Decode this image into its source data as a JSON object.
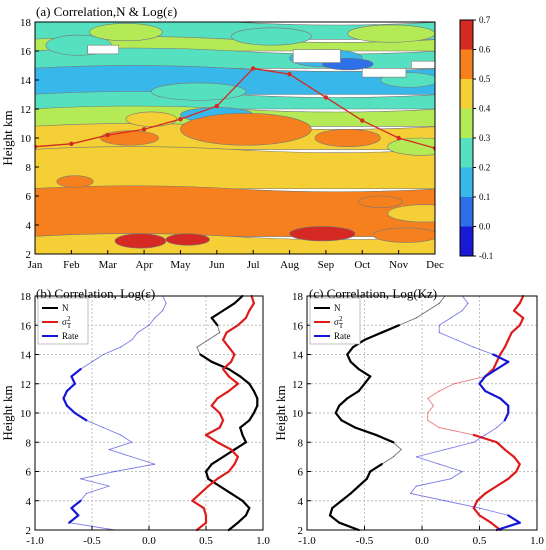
{
  "chart_data": [
    {
      "id": "a",
      "type": "heatmap",
      "title": "(a)  Correlation,N & Log(ε)",
      "ylabel": "Height km",
      "x_categories": [
        "Jan",
        "Feb",
        "Mar",
        "Apr",
        "May",
        "Jun",
        "Jul",
        "Aug",
        "Sep",
        "Oct",
        "Nov",
        "Dec"
      ],
      "ylim": [
        2,
        18
      ],
      "yticks": [
        2,
        4,
        6,
        8,
        10,
        12,
        14,
        16,
        18
      ],
      "colorbar": {
        "levels": [
          -0.1,
          0.0,
          0.1,
          0.2,
          0.3,
          0.4,
          0.5,
          0.6,
          0.7
        ],
        "tick_labels": [
          "-0.1",
          "0.0",
          "0.1",
          "0.2",
          "0.3",
          "0.4",
          "0.5",
          "0.6",
          "0.7"
        ],
        "colors": [
          "#1a1ad6",
          "#2f6fe8",
          "#38b8ea",
          "#55e0c0",
          "#b4ea55",
          "#f4cf35",
          "#f7801e",
          "#d42a23"
        ]
      },
      "bands": [
        {
          "level": 3,
          "yLow": 16.8,
          "yHigh": 18.0
        },
        {
          "level": 4,
          "yLow": 16.0,
          "yHigh": 16.8
        },
        {
          "level": 3,
          "yLow": 14.8,
          "yHigh": 16.0
        },
        {
          "level": 2,
          "yLow": 13.0,
          "yHigh": 14.8
        },
        {
          "level": 3,
          "yLow": 12.0,
          "yHigh": 13.0
        },
        {
          "level": 4,
          "yLow": 10.8,
          "yHigh": 12.0
        },
        {
          "level": 5,
          "yLow": 9.2,
          "yHigh": 10.8
        },
        {
          "level": 5,
          "yLow": 6.5,
          "yHigh": 9.2
        },
        {
          "level": 6,
          "yLow": 3.2,
          "yHigh": 6.5
        },
        {
          "level": 5,
          "yLow": 2.0,
          "yHigh": 3.2
        }
      ],
      "blobs": [
        {
          "level": 3,
          "x": 1.2,
          "y": 16.4,
          "rx": 0.9,
          "ry": 0.7
        },
        {
          "level": 4,
          "x": 2.5,
          "y": 17.3,
          "rx": 1.0,
          "ry": 0.6
        },
        {
          "level": 3,
          "x": 6.5,
          "y": 17.0,
          "rx": 1.1,
          "ry": 0.6
        },
        {
          "level": 4,
          "x": 9.8,
          "y": 17.2,
          "rx": 1.2,
          "ry": 0.6
        },
        {
          "level": 2,
          "x": 8.0,
          "y": 15.5,
          "rx": 1.0,
          "ry": 0.6
        },
        {
          "level": 1,
          "x": 8.6,
          "y": 15.1,
          "rx": 0.7,
          "ry": 0.4
        },
        {
          "level": 3,
          "x": 4.5,
          "y": 13.2,
          "rx": 1.3,
          "ry": 0.6
        },
        {
          "level": 3,
          "x": 10.3,
          "y": 14.0,
          "rx": 0.8,
          "ry": 0.5
        },
        {
          "level": 2,
          "x": 5.0,
          "y": 11.6,
          "rx": 1.0,
          "ry": 0.5
        },
        {
          "level": 5,
          "x": 3.2,
          "y": 11.3,
          "rx": 0.7,
          "ry": 0.5
        },
        {
          "level": 6,
          "x": 5.8,
          "y": 10.6,
          "rx": 1.8,
          "ry": 1.1
        },
        {
          "level": 6,
          "x": 2.6,
          "y": 10.0,
          "rx": 0.8,
          "ry": 0.5
        },
        {
          "level": 6,
          "x": 8.6,
          "y": 10.0,
          "rx": 0.9,
          "ry": 0.6
        },
        {
          "level": 4,
          "x": 10.6,
          "y": 9.4,
          "rx": 0.9,
          "ry": 0.6
        },
        {
          "level": 6,
          "x": 1.1,
          "y": 7.0,
          "rx": 0.5,
          "ry": 0.4
        },
        {
          "level": 6,
          "x": 9.5,
          "y": 5.6,
          "rx": 0.6,
          "ry": 0.4
        },
        {
          "level": 5,
          "x": 10.7,
          "y": 4.8,
          "rx": 1.0,
          "ry": 0.6
        },
        {
          "level": 7,
          "x": 2.9,
          "y": 2.9,
          "rx": 0.7,
          "ry": 0.5
        },
        {
          "level": 7,
          "x": 4.2,
          "y": 3.0,
          "rx": 0.6,
          "ry": 0.4
        },
        {
          "level": 7,
          "x": 7.9,
          "y": 3.4,
          "rx": 0.9,
          "ry": 0.5
        },
        {
          "level": 6,
          "x": 10.2,
          "y": 3.3,
          "rx": 0.9,
          "ry": 0.5
        }
      ],
      "blanks": [
        {
          "x": 1.45,
          "y": 15.8,
          "w": 0.85,
          "h": 0.6
        },
        {
          "x": 7.1,
          "y": 15.2,
          "w": 1.3,
          "h": 0.9
        },
        {
          "x": 9.0,
          "y": 14.2,
          "w": 1.2,
          "h": 0.6
        },
        {
          "x": 10.35,
          "y": 14.8,
          "w": 0.65,
          "h": 0.5
        }
      ],
      "series": [
        {
          "x": [
            0,
            1,
            2,
            3,
            4,
            5,
            6,
            7,
            8,
            9,
            10,
            11
          ],
          "y": [
            9.4,
            9.6,
            10.2,
            10.6,
            11.3,
            12.2,
            14.8,
            14.4,
            12.8,
            11.2,
            10.0,
            9.3
          ],
          "color": "#d42a23"
        }
      ]
    },
    {
      "id": "b",
      "type": "line",
      "title": "(b)  Correlation, Log(ε)",
      "ylabel": "Height km",
      "xlim": [
        -1.0,
        1.0
      ],
      "ylim": [
        2,
        18
      ],
      "xticks": [
        -1.0,
        -0.5,
        0.0,
        0.5,
        1.0
      ],
      "xtick_labels": [
        "-1.0",
        "-0.5",
        "0.0",
        "0.5",
        "1.0"
      ],
      "yticks": [
        2,
        4,
        6,
        8,
        10,
        12,
        14,
        16,
        18
      ],
      "legend": [
        "N",
        "σT²",
        "Rate"
      ],
      "series": [
        {
          "name": "N",
          "color": "#000000",
          "y": [
            2,
            2.5,
            3,
            3.5,
            4,
            4.5,
            5,
            5.5,
            6,
            6.5,
            7,
            7.5,
            8,
            8.5,
            9,
            9.5,
            10,
            10.5,
            11,
            11.5,
            12,
            12.5,
            13,
            13.5,
            14,
            14.5,
            15,
            15.5,
            16,
            16.5,
            17,
            17.5,
            18
          ],
          "x": [
            0.7,
            0.78,
            0.85,
            0.88,
            0.82,
            0.72,
            0.62,
            0.52,
            0.5,
            0.55,
            0.65,
            0.75,
            0.85,
            0.82,
            0.8,
            0.88,
            0.92,
            0.95,
            0.95,
            0.92,
            0.88,
            0.8,
            0.7,
            0.55,
            0.45,
            0.42,
            0.52,
            0.62,
            0.6,
            0.55,
            0.65,
            0.75,
            0.82
          ],
          "sig": [
            true,
            true,
            true,
            true,
            true,
            true,
            true,
            true,
            true,
            true,
            true,
            true,
            true,
            true,
            true,
            true,
            true,
            true,
            true,
            true,
            true,
            true,
            true,
            true,
            true,
            false,
            false,
            false,
            true,
            true,
            true,
            true,
            true
          ]
        },
        {
          "name": "σT²",
          "color": "#e01b1b",
          "y": [
            2,
            2.5,
            3,
            3.5,
            4,
            4.5,
            5,
            5.5,
            6,
            6.5,
            7,
            7.5,
            8,
            8.5,
            9,
            9.5,
            10,
            10.5,
            11,
            11.5,
            12,
            12.5,
            13,
            13.5,
            14,
            14.5,
            15,
            15.5,
            16,
            16.5,
            17,
            17.5,
            18
          ],
          "x": [
            0.42,
            0.5,
            0.5,
            0.48,
            0.38,
            0.45,
            0.52,
            0.6,
            0.7,
            0.75,
            0.78,
            0.72,
            0.6,
            0.5,
            0.62,
            0.65,
            0.62,
            0.55,
            0.6,
            0.7,
            0.78,
            0.7,
            0.65,
            0.72,
            0.75,
            0.7,
            0.65,
            0.68,
            0.78,
            0.85,
            0.88,
            0.92,
            0.9
          ],
          "sig": [
            true,
            true,
            true,
            true,
            true,
            true,
            true,
            true,
            true,
            true,
            true,
            true,
            true,
            true,
            true,
            true,
            true,
            true,
            true,
            true,
            true,
            true,
            true,
            true,
            true,
            true,
            true,
            true,
            true,
            true,
            true,
            true,
            true
          ]
        },
        {
          "name": "Rate",
          "color": "#1515d6",
          "y": [
            2,
            2.5,
            3,
            3.5,
            4,
            4.5,
            5,
            5.5,
            6,
            6.5,
            7,
            7.5,
            8,
            8.5,
            9,
            9.5,
            10,
            10.5,
            11,
            11.5,
            12,
            12.5,
            13,
            13.5,
            14,
            14.5,
            15,
            15.5,
            16,
            16.5,
            17,
            17.5,
            18
          ],
          "x": [
            -0.3,
            -0.7,
            -0.62,
            -0.68,
            -0.6,
            -0.55,
            -0.35,
            -0.6,
            -0.3,
            0.05,
            -0.15,
            -0.35,
            -0.15,
            -0.25,
            -0.4,
            -0.55,
            -0.65,
            -0.72,
            -0.75,
            -0.72,
            -0.65,
            -0.68,
            -0.6,
            -0.5,
            -0.4,
            -0.25,
            -0.15,
            -0.1,
            0.0,
            0.05,
            0.12,
            0.15,
            0.12
          ],
          "sig": [
            false,
            true,
            true,
            true,
            true,
            false,
            false,
            false,
            false,
            false,
            false,
            false,
            false,
            false,
            false,
            true,
            true,
            true,
            true,
            true,
            true,
            true,
            true,
            false,
            false,
            false,
            false,
            false,
            false,
            false,
            false,
            false,
            false
          ]
        }
      ]
    },
    {
      "id": "c",
      "type": "line",
      "title": "(c)  Correlation, Log(Kz)",
      "ylabel": "Height km",
      "xlim": [
        -1.0,
        1.0
      ],
      "ylim": [
        2,
        18
      ],
      "xticks": [
        -1.0,
        -0.5,
        0.0,
        0.5,
        1.0
      ],
      "xtick_labels": [
        "-1.0",
        "-0.5",
        "0.0",
        "0.5",
        "1.0"
      ],
      "yticks": [
        2,
        4,
        6,
        8,
        10,
        12,
        14,
        16,
        18
      ],
      "legend": [
        "N",
        "σT²",
        "Rate"
      ],
      "series": [
        {
          "name": "N",
          "color": "#000000",
          "y": [
            2,
            2.5,
            3,
            3.5,
            4,
            4.5,
            5,
            5.5,
            6,
            6.5,
            7,
            7.5,
            8,
            8.5,
            9,
            9.5,
            10,
            10.5,
            11,
            11.5,
            12,
            12.5,
            13,
            13.5,
            14,
            14.5,
            15,
            15.5,
            16,
            16.5,
            17,
            17.5,
            18
          ],
          "x": [
            -0.55,
            -0.72,
            -0.8,
            -0.78,
            -0.7,
            -0.62,
            -0.55,
            -0.48,
            -0.45,
            -0.35,
            -0.25,
            -0.18,
            -0.25,
            -0.4,
            -0.58,
            -0.7,
            -0.75,
            -0.72,
            -0.65,
            -0.55,
            -0.5,
            -0.45,
            -0.55,
            -0.62,
            -0.65,
            -0.6,
            -0.5,
            -0.35,
            -0.2,
            -0.05,
            0.05,
            0.15,
            0.2
          ],
          "sig": [
            true,
            true,
            true,
            true,
            true,
            true,
            true,
            true,
            true,
            true,
            false,
            false,
            true,
            true,
            true,
            true,
            true,
            true,
            true,
            true,
            true,
            true,
            true,
            true,
            true,
            true,
            true,
            true,
            true,
            false,
            false,
            false,
            false
          ]
        },
        {
          "name": "σT²",
          "color": "#e01b1b",
          "y": [
            2,
            2.5,
            3,
            3.5,
            4,
            4.5,
            5,
            5.5,
            6,
            6.5,
            7,
            7.5,
            8,
            8.5,
            9,
            9.5,
            10,
            10.5,
            11,
            11.5,
            12,
            12.5,
            13,
            13.5,
            14,
            14.5,
            15,
            15.5,
            16,
            16.5,
            17,
            17.5,
            18
          ],
          "x": [
            0.68,
            0.6,
            0.5,
            0.45,
            0.48,
            0.55,
            0.65,
            0.75,
            0.82,
            0.85,
            0.8,
            0.72,
            0.65,
            0.45,
            0.15,
            0.05,
            0.05,
            0.1,
            0.05,
            0.15,
            0.28,
            0.55,
            0.62,
            0.65,
            0.68,
            0.72,
            0.75,
            0.78,
            0.85,
            0.88,
            0.8,
            0.85,
            0.88
          ],
          "sig": [
            true,
            true,
            true,
            true,
            true,
            true,
            true,
            true,
            true,
            true,
            true,
            true,
            true,
            true,
            false,
            false,
            false,
            false,
            false,
            false,
            false,
            true,
            true,
            true,
            true,
            true,
            true,
            true,
            true,
            true,
            true,
            true,
            true
          ]
        },
        {
          "name": "Rate",
          "color": "#1515d6",
          "y": [
            2,
            2.5,
            3,
            3.5,
            4,
            4.5,
            5,
            5.5,
            6,
            6.5,
            7,
            7.5,
            8,
            8.5,
            9,
            9.5,
            10,
            10.5,
            11,
            11.5,
            12,
            12.5,
            13,
            13.5,
            14,
            14.5,
            15,
            15.5,
            16,
            16.5,
            17,
            17.5,
            18
          ],
          "x": [
            0.65,
            0.85,
            0.75,
            0.5,
            0.2,
            -0.1,
            -0.05,
            0.25,
            0.35,
            0.15,
            -0.05,
            0.2,
            0.45,
            0.55,
            0.65,
            0.72,
            0.75,
            0.75,
            0.68,
            0.55,
            0.5,
            0.55,
            0.65,
            0.75,
            0.62,
            0.45,
            0.3,
            0.15,
            0.15,
            0.25,
            0.35,
            0.4,
            0.35
          ],
          "sig": [
            true,
            true,
            true,
            false,
            false,
            false,
            false,
            false,
            false,
            false,
            false,
            false,
            false,
            false,
            false,
            true,
            true,
            true,
            true,
            true,
            true,
            true,
            true,
            true,
            true,
            false,
            false,
            false,
            false,
            false,
            false,
            false,
            false
          ]
        }
      ]
    }
  ]
}
